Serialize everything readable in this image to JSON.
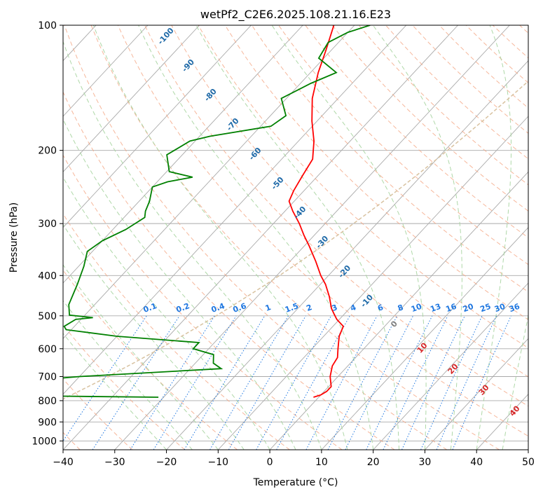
{
  "chart_data": {
    "type": "line",
    "title": "wetPf2_C2E6.2025.108.21.16.E23",
    "xlabel": "Temperature (°C)",
    "ylabel": "Pressure (hPa)",
    "xlim": [
      -40,
      50
    ],
    "ylim": [
      1050,
      100
    ],
    "y_scale": "log",
    "grid": true,
    "x_ticks": [
      -40,
      -30,
      -20,
      -10,
      0,
      10,
      20,
      30,
      40,
      50
    ],
    "y_ticks": [
      100,
      200,
      300,
      400,
      500,
      600,
      700,
      800,
      900,
      1000
    ],
    "series": [
      {
        "color": "#ff0000",
        "points": [
          {
            "p": 785,
            "t": -1.0
          },
          {
            "p": 775,
            "t": 0.0
          },
          {
            "p": 760,
            "t": 0.5
          },
          {
            "p": 740,
            "t": 0.5
          },
          {
            "p": 700,
            "t": -1.5
          },
          {
            "p": 660,
            "t": -3.0
          },
          {
            "p": 630,
            "t": -3.5
          },
          {
            "p": 600,
            "t": -5.0
          },
          {
            "p": 560,
            "t": -7.0
          },
          {
            "p": 530,
            "t": -8.0
          },
          {
            "p": 510,
            "t": -10.5
          },
          {
            "p": 495,
            "t": -12.0
          },
          {
            "p": 480,
            "t": -13.5
          },
          {
            "p": 450,
            "t": -16.0
          },
          {
            "p": 420,
            "t": -19.0
          },
          {
            "p": 400,
            "t": -21.5
          },
          {
            "p": 370,
            "t": -25.0
          },
          {
            "p": 340,
            "t": -29.0
          },
          {
            "p": 320,
            "t": -32.0
          },
          {
            "p": 300,
            "t": -35.0
          },
          {
            "p": 280,
            "t": -38.5
          },
          {
            "p": 265,
            "t": -41.0
          },
          {
            "p": 250,
            "t": -42.0
          },
          {
            "p": 230,
            "t": -43.0
          },
          {
            "p": 210,
            "t": -44.0
          },
          {
            "p": 190,
            "t": -47.0
          },
          {
            "p": 170,
            "t": -51.0
          },
          {
            "p": 150,
            "t": -55.0
          },
          {
            "p": 130,
            "t": -58.5
          },
          {
            "p": 115,
            "t": -61.0
          },
          {
            "p": 100,
            "t": -64.0
          }
        ]
      },
      {
        "color": "#008000",
        "points": [
          {
            "p": 785,
            "t": -31.0
          },
          {
            "p": 780,
            "t": -51.0
          },
          {
            "p": 760,
            "t": -61.0
          },
          {
            "p": 748,
            "t": -59.0
          },
          {
            "p": 740,
            "t": -54.5
          },
          {
            "p": 730,
            "t": -60.0
          },
          {
            "p": 720,
            "t": -61.0
          },
          {
            "p": 700,
            "t": -50.0
          },
          {
            "p": 670,
            "t": -24.0
          },
          {
            "p": 650,
            "t": -26.5
          },
          {
            "p": 620,
            "t": -28.0
          },
          {
            "p": 600,
            "t": -33.0
          },
          {
            "p": 580,
            "t": -33.0
          },
          {
            "p": 560,
            "t": -50.0
          },
          {
            "p": 540,
            "t": -61.0
          },
          {
            "p": 530,
            "t": -62.0
          },
          {
            "p": 510,
            "t": -61.0
          },
          {
            "p": 505,
            "t": -58.0
          },
          {
            "p": 498,
            "t": -63.0
          },
          {
            "p": 470,
            "t": -65.0
          },
          {
            "p": 420,
            "t": -67.0
          },
          {
            "p": 380,
            "t": -69.0
          },
          {
            "p": 350,
            "t": -71.0
          },
          {
            "p": 330,
            "t": -70.0
          },
          {
            "p": 310,
            "t": -67.5
          },
          {
            "p": 290,
            "t": -66.0
          },
          {
            "p": 280,
            "t": -67.0
          },
          {
            "p": 265,
            "t": -68.0
          },
          {
            "p": 245,
            "t": -70.0
          },
          {
            "p": 238,
            "t": -68.0
          },
          {
            "p": 232,
            "t": -64.0
          },
          {
            "p": 225,
            "t": -69.5
          },
          {
            "p": 205,
            "t": -73.0
          },
          {
            "p": 190,
            "t": -71.0
          },
          {
            "p": 185,
            "t": -68.0
          },
          {
            "p": 175,
            "t": -58.0
          },
          {
            "p": 165,
            "t": -57.0
          },
          {
            "p": 150,
            "t": -61.0
          },
          {
            "p": 138,
            "t": -58.0
          },
          {
            "p": 130,
            "t": -55.0
          },
          {
            "p": 120,
            "t": -61.0
          },
          {
            "p": 110,
            "t": -62.0
          },
          {
            "p": 104,
            "t": -60.0
          },
          {
            "p": 100,
            "t": -57.0
          }
        ]
      }
    ],
    "dry_adiabat_labels": [
      "-100",
      "-90",
      "-80",
      "-70",
      "-60",
      "-50",
      "-40",
      "-30",
      "-20",
      "-10",
      "0",
      "10",
      "20",
      "30",
      "40"
    ],
    "mixing_ratio_labels": [
      "0.1",
      "0.2",
      "0.4",
      "0.6",
      "1",
      "1.5",
      "2",
      "3",
      "4",
      "6",
      "8",
      "10",
      "13",
      "16",
      "20",
      "25",
      "30",
      "36"
    ],
    "colors": {
      "isotherm": "#aaaaaa",
      "dry_adiabat": "#f4a582",
      "moist_adiabat": "#a6d49f",
      "mixing_ratio": "#1f77e0",
      "cold_label": "#1f6aa8",
      "warm_label": "#d62728",
      "zero_label": "#7f7f7f",
      "freezing_line": "#d8c2a0"
    }
  }
}
